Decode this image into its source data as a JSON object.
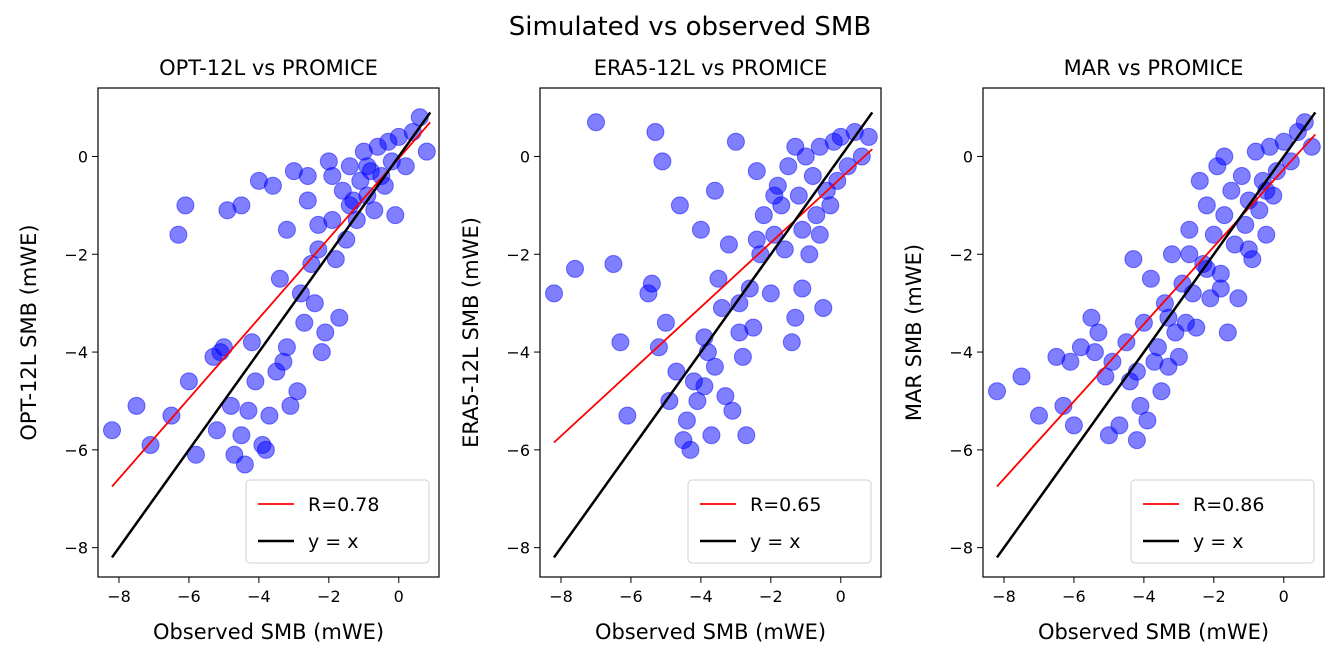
{
  "figure": {
    "suptitle": "Simulated vs observed SMB"
  },
  "style": {
    "point_color": "#0000ff",
    "fit_color": "#ff0000",
    "identity_color": "#000000"
  },
  "chart_data": [
    {
      "type": "scatter",
      "title": "OPT-12L vs PROMICE",
      "xlabel": "Observed SMB (mWE)",
      "ylabel": "OPT-12L SMB (mWE)",
      "xlim": [
        -8.6,
        1.15
      ],
      "ylim": [
        -8.6,
        1.4
      ],
      "xticks": [
        -8,
        -6,
        -4,
        -2,
        0
      ],
      "yticks": [
        -8,
        -6,
        -4,
        -2,
        0
      ],
      "grid": false,
      "legend_position": "lower-right",
      "fit": {
        "label": "R=0.78",
        "x": [
          -8.2,
          0.9
        ],
        "y": [
          -6.75,
          0.7
        ]
      },
      "identity": {
        "label": "y = x",
        "x": [
          -8.2,
          0.9
        ],
        "y": [
          -8.2,
          0.9
        ]
      },
      "points": [
        [
          -8.2,
          -5.6
        ],
        [
          -7.5,
          -5.1
        ],
        [
          -7.1,
          -5.9
        ],
        [
          -6.5,
          -5.3
        ],
        [
          -6.3,
          -1.6
        ],
        [
          -6.1,
          -1.0
        ],
        [
          -6.0,
          -4.6
        ],
        [
          -5.8,
          -6.1
        ],
        [
          -5.2,
          -5.6
        ],
        [
          -5.3,
          -4.1
        ],
        [
          -5.1,
          -4.0
        ],
        [
          -5.0,
          -3.9
        ],
        [
          -4.9,
          -1.1
        ],
        [
          -4.8,
          -5.1
        ],
        [
          -4.7,
          -6.1
        ],
        [
          -4.5,
          -5.7
        ],
        [
          -4.4,
          -6.3
        ],
        [
          -4.3,
          -5.2
        ],
        [
          -4.5,
          -1.0
        ],
        [
          -4.2,
          -3.8
        ],
        [
          -4.1,
          -4.6
        ],
        [
          -3.9,
          -5.9
        ],
        [
          -3.8,
          -6.0
        ],
        [
          -4.0,
          -0.5
        ],
        [
          -3.7,
          -5.3
        ],
        [
          -3.6,
          -0.6
        ],
        [
          -3.5,
          -4.4
        ],
        [
          -3.4,
          -2.5
        ],
        [
          -3.3,
          -4.2
        ],
        [
          -3.2,
          -1.5
        ],
        [
          -3.1,
          -5.1
        ],
        [
          -3.0,
          -0.3
        ],
        [
          -2.9,
          -4.8
        ],
        [
          -2.8,
          -2.8
        ],
        [
          -2.7,
          -3.4
        ],
        [
          -2.6,
          -0.4
        ],
        [
          -2.5,
          -2.2
        ],
        [
          -2.4,
          -3.0
        ],
        [
          -2.3,
          -1.9
        ],
        [
          -2.2,
          -4.0
        ],
        [
          -2.1,
          -3.6
        ],
        [
          -2.0,
          -0.1
        ],
        [
          -1.9,
          -1.3
        ],
        [
          -1.8,
          -2.1
        ],
        [
          -1.7,
          -3.3
        ],
        [
          -1.6,
          -0.7
        ],
        [
          -1.5,
          -1.7
        ],
        [
          -1.4,
          -0.2
        ],
        [
          -1.3,
          -0.9
        ],
        [
          -1.2,
          -1.3
        ],
        [
          -1.1,
          -0.5
        ],
        [
          -1.0,
          0.1
        ],
        [
          -0.9,
          -0.8
        ],
        [
          -0.8,
          -0.3
        ],
        [
          -0.7,
          -1.1
        ],
        [
          -0.6,
          0.2
        ],
        [
          -0.5,
          -0.4
        ],
        [
          -0.4,
          -0.6
        ],
        [
          -0.3,
          0.3
        ],
        [
          -0.2,
          -0.1
        ],
        [
          -0.1,
          -1.2
        ],
        [
          0.0,
          0.4
        ],
        [
          0.2,
          -0.2
        ],
        [
          0.4,
          0.5
        ],
        [
          0.6,
          0.8
        ],
        [
          0.8,
          0.1
        ],
        [
          -2.6,
          -0.9
        ],
        [
          -1.9,
          -0.4
        ],
        [
          -1.4,
          -1.0
        ],
        [
          -0.9,
          -0.2
        ],
        [
          -2.3,
          -1.4
        ],
        [
          -3.2,
          -3.9
        ]
      ]
    },
    {
      "type": "scatter",
      "title": "ERA5-12L vs PROMICE",
      "xlabel": "Observed SMB (mWE)",
      "ylabel": "ERA5-12L SMB (mWE)",
      "xlim": [
        -8.6,
        1.15
      ],
      "ylim": [
        -8.6,
        1.4
      ],
      "xticks": [
        -8,
        -6,
        -4,
        -2,
        0
      ],
      "yticks": [
        -8,
        -6,
        -4,
        -2,
        0
      ],
      "grid": false,
      "legend_position": "lower-right",
      "fit": {
        "label": "R=0.65",
        "x": [
          -8.2,
          0.9
        ],
        "y": [
          -5.85,
          0.15
        ]
      },
      "identity": {
        "label": "y = x",
        "x": [
          -8.2,
          0.9
        ],
        "y": [
          -8.2,
          0.9
        ]
      },
      "points": [
        [
          -8.2,
          -2.8
        ],
        [
          -7.6,
          -2.3
        ],
        [
          -7.0,
          0.7
        ],
        [
          -6.5,
          -2.2
        ],
        [
          -6.3,
          -3.8
        ],
        [
          -6.1,
          -5.3
        ],
        [
          -5.5,
          -2.8
        ],
        [
          -5.3,
          0.5
        ],
        [
          -5.2,
          -3.9
        ],
        [
          -5.1,
          -0.1
        ],
        [
          -5.0,
          -3.4
        ],
        [
          -4.9,
          -5.0
        ],
        [
          -4.7,
          -4.4
        ],
        [
          -4.5,
          -5.8
        ],
        [
          -4.4,
          -5.4
        ],
        [
          -4.3,
          -6.0
        ],
        [
          -4.2,
          -4.6
        ],
        [
          -4.1,
          -5.0
        ],
        [
          -4.0,
          -1.5
        ],
        [
          -3.9,
          -3.7
        ],
        [
          -3.8,
          -4.0
        ],
        [
          -3.7,
          -5.7
        ],
        [
          -3.6,
          -0.7
        ],
        [
          -3.5,
          -2.5
        ],
        [
          -3.4,
          -3.1
        ],
        [
          -3.3,
          -4.9
        ],
        [
          -3.2,
          -1.8
        ],
        [
          -3.1,
          -5.2
        ],
        [
          -3.0,
          0.3
        ],
        [
          -2.9,
          -3.6
        ],
        [
          -2.8,
          -4.1
        ],
        [
          -2.7,
          -5.7
        ],
        [
          -2.6,
          -2.7
        ],
        [
          -2.5,
          -3.5
        ],
        [
          -2.4,
          -0.3
        ],
        [
          -2.3,
          -2.0
        ],
        [
          -2.2,
          -1.2
        ],
        [
          -2.0,
          -2.8
        ],
        [
          -1.9,
          -1.6
        ],
        [
          -1.8,
          -0.6
        ],
        [
          -1.7,
          -1.0
        ],
        [
          -1.6,
          -1.9
        ],
        [
          -1.5,
          -0.2
        ],
        [
          -1.4,
          -3.8
        ],
        [
          -1.3,
          -3.3
        ],
        [
          -1.2,
          -0.8
        ],
        [
          -1.1,
          -1.5
        ],
        [
          -1.0,
          0.0
        ],
        [
          -0.9,
          -2.0
        ],
        [
          -0.8,
          -0.4
        ],
        [
          -0.7,
          -1.2
        ],
        [
          -0.6,
          0.2
        ],
        [
          -0.5,
          -3.1
        ],
        [
          -0.4,
          -0.7
        ],
        [
          -0.3,
          -1.0
        ],
        [
          -0.2,
          0.3
        ],
        [
          -0.1,
          -0.5
        ],
        [
          0.0,
          0.4
        ],
        [
          0.2,
          -0.2
        ],
        [
          0.4,
          0.5
        ],
        [
          0.6,
          0.0
        ],
        [
          0.8,
          0.4
        ],
        [
          -1.3,
          0.2
        ],
        [
          -1.9,
          -0.8
        ],
        [
          -2.4,
          -1.7
        ],
        [
          -2.9,
          -3.0
        ],
        [
          -3.6,
          -4.3
        ],
        [
          -1.1,
          -2.7
        ],
        [
          -0.6,
          -1.6
        ],
        [
          -4.6,
          -1.0
        ],
        [
          -5.4,
          -2.6
        ],
        [
          -3.9,
          -4.7
        ]
      ]
    },
    {
      "type": "scatter",
      "title": "MAR vs PROMICE",
      "xlabel": "Observed SMB (mWE)",
      "ylabel": "MAR SMB (mWE)",
      "xlim": [
        -8.6,
        1.15
      ],
      "ylim": [
        -8.6,
        1.4
      ],
      "xticks": [
        -8,
        -6,
        -4,
        -2,
        0
      ],
      "yticks": [
        -8,
        -6,
        -4,
        -2,
        0
      ],
      "grid": false,
      "legend_position": "lower-right",
      "fit": {
        "label": "R=0.86",
        "x": [
          -8.2,
          0.9
        ],
        "y": [
          -6.75,
          0.45
        ]
      },
      "identity": {
        "label": "y = x",
        "x": [
          -8.2,
          0.9
        ],
        "y": [
          -8.2,
          0.9
        ]
      },
      "points": [
        [
          -8.2,
          -4.8
        ],
        [
          -7.5,
          -4.5
        ],
        [
          -7.0,
          -5.3
        ],
        [
          -6.5,
          -4.1
        ],
        [
          -6.3,
          -5.1
        ],
        [
          -6.1,
          -4.2
        ],
        [
          -6.0,
          -5.5
        ],
        [
          -5.8,
          -3.9
        ],
        [
          -5.5,
          -3.3
        ],
        [
          -5.4,
          -4.0
        ],
        [
          -5.3,
          -3.6
        ],
        [
          -5.1,
          -4.5
        ],
        [
          -5.0,
          -5.7
        ],
        [
          -4.9,
          -4.2
        ],
        [
          -4.7,
          -5.5
        ],
        [
          -4.5,
          -3.8
        ],
        [
          -4.4,
          -4.6
        ],
        [
          -4.3,
          -2.1
        ],
        [
          -4.2,
          -5.8
        ],
        [
          -4.1,
          -5.1
        ],
        [
          -4.0,
          -3.4
        ],
        [
          -3.9,
          -5.4
        ],
        [
          -3.8,
          -2.5
        ],
        [
          -3.7,
          -4.2
        ],
        [
          -3.6,
          -3.9
        ],
        [
          -3.5,
          -4.8
        ],
        [
          -3.4,
          -3.0
        ],
        [
          -3.3,
          -4.3
        ],
        [
          -3.2,
          -2.0
        ],
        [
          -3.1,
          -3.6
        ],
        [
          -3.0,
          -4.1
        ],
        [
          -2.9,
          -2.6
        ],
        [
          -2.8,
          -3.4
        ],
        [
          -2.7,
          -1.5
        ],
        [
          -2.6,
          -2.8
        ],
        [
          -2.5,
          -3.5
        ],
        [
          -2.4,
          -0.5
        ],
        [
          -2.3,
          -2.2
        ],
        [
          -2.2,
          -1.0
        ],
        [
          -2.1,
          -2.9
        ],
        [
          -2.0,
          -1.6
        ],
        [
          -1.9,
          -0.2
        ],
        [
          -1.8,
          -2.4
        ],
        [
          -1.7,
          -1.2
        ],
        [
          -1.6,
          -3.6
        ],
        [
          -1.5,
          -0.7
        ],
        [
          -1.4,
          -1.8
        ],
        [
          -1.3,
          -2.9
        ],
        [
          -1.2,
          -0.4
        ],
        [
          -1.1,
          -1.4
        ],
        [
          -1.0,
          -0.9
        ],
        [
          -0.9,
          -2.1
        ],
        [
          -0.8,
          0.1
        ],
        [
          -0.7,
          -1.1
        ],
        [
          -0.6,
          -0.5
        ],
        [
          -0.5,
          -1.6
        ],
        [
          -0.4,
          0.2
        ],
        [
          -0.3,
          -0.8
        ],
        [
          -0.2,
          -0.3
        ],
        [
          0.0,
          0.3
        ],
        [
          0.2,
          -0.1
        ],
        [
          0.4,
          0.5
        ],
        [
          0.6,
          0.7
        ],
        [
          0.8,
          0.2
        ],
        [
          -1.7,
          0.0
        ],
        [
          -2.7,
          -2.0
        ],
        [
          -3.3,
          -3.3
        ],
        [
          -1.0,
          -1.9
        ],
        [
          -0.5,
          -0.7
        ],
        [
          -1.8,
          -2.7
        ],
        [
          -4.2,
          -4.4
        ],
        [
          -2.2,
          -2.3
        ]
      ]
    }
  ]
}
